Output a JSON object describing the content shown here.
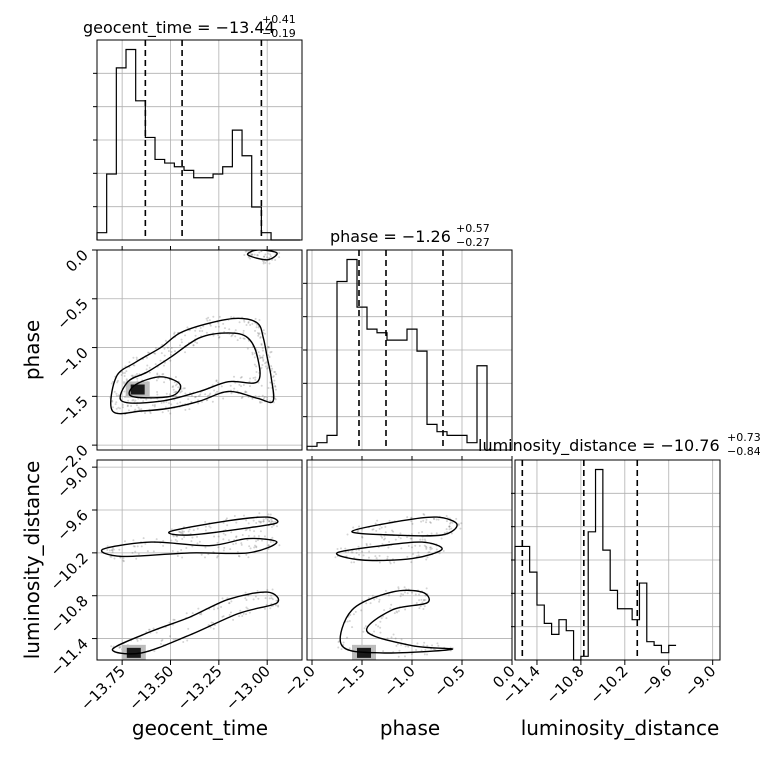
{
  "chart_data": {
    "type": "corner",
    "parameters": [
      "geocent_time",
      "phase",
      "luminosity_distance"
    ],
    "titles": [
      {
        "name": "geocent_time",
        "value": "−13.44",
        "plus": "+0.41",
        "minus": "−0.19"
      },
      {
        "name": "phase",
        "value": "−1.26",
        "plus": "+0.57",
        "minus": "−0.27"
      },
      {
        "name": "luminosity_distance",
        "value": "−10.76",
        "plus": "+0.73",
        "minus": "−0.84"
      }
    ],
    "axis_labels": {
      "x": [
        "geocent_time",
        "phase",
        "luminosity_distance"
      ],
      "y": [
        "phase",
        "luminosity_distance"
      ]
    },
    "ranges": {
      "geocent_time": [
        -13.88,
        -12.82
      ],
      "phase": [
        -2.05,
        0.0
      ],
      "luminosity_distance": [
        -11.7,
        -8.9
      ]
    },
    "ticks": {
      "geocent_time": [
        "−13.75",
        "−13.50",
        "−13.25",
        "−13.00"
      ],
      "geocent_time_values": [
        -13.75,
        -13.5,
        -13.25,
        -13.0
      ],
      "phase": [
        "−2.0",
        "−1.5",
        "−1.0",
        "−0.5",
        "0.0"
      ],
      "phase_values": [
        -2.0,
        -1.5,
        -1.0,
        -0.5,
        0.0
      ],
      "luminosity_distance": [
        "−11.4",
        "−10.8",
        "−10.2",
        "−9.6",
        "−9.0"
      ],
      "luminosity_distance_values": [
        -11.4,
        -10.8,
        -10.2,
        -9.6,
        -9.0
      ]
    },
    "quantiles": {
      "geocent_time": [
        -13.63,
        -13.44,
        -13.03
      ],
      "phase": [
        -1.53,
        -1.26,
        -0.69
      ],
      "luminosity_distance": [
        -11.6,
        -10.76,
        -10.03
      ]
    },
    "hist_geocent_time": {
      "bin_edges_start": -13.88,
      "bin_width": 0.05,
      "counts": [
        2,
        18,
        47,
        52,
        38,
        28,
        22,
        21,
        20,
        19,
        17,
        17,
        18,
        20,
        30,
        23,
        9,
        2,
        0,
        0,
        0
      ]
    },
    "hist_phase": {
      "bin_edges_start": -2.05,
      "bin_width": 0.1,
      "counts": [
        1,
        2,
        4,
        46,
        52,
        39,
        33,
        32,
        30,
        30,
        33,
        27,
        7,
        5,
        4,
        4,
        2,
        23,
        0
      ]
    },
    "hist_luminosity_distance": {
      "bin_edges_start": -11.7,
      "bin_width": 0.1,
      "counts": [
        31,
        31,
        24,
        15,
        10,
        7,
        11,
        8,
        0,
        1,
        35,
        52,
        30,
        19,
        14,
        14,
        11,
        21,
        5,
        4,
        2,
        4
      ]
    },
    "contours": {
      "phase_vs_geocent_time": [
        {
          "level": "outer",
          "points": [
            [
              -13.8,
              -1.65
            ],
            [
              -13.78,
              -1.3
            ],
            [
              -13.68,
              -1.15
            ],
            [
              -13.55,
              -1.0
            ],
            [
              -13.45,
              -0.85
            ],
            [
              -13.3,
              -0.75
            ],
            [
              -13.15,
              -0.7
            ],
            [
              -13.05,
              -0.75
            ],
            [
              -13.02,
              -0.9
            ],
            [
              -13.0,
              -1.1
            ],
            [
              -12.98,
              -1.3
            ],
            [
              -12.97,
              -1.55
            ],
            [
              -13.05,
              -1.52
            ],
            [
              -13.2,
              -1.45
            ],
            [
              -13.35,
              -1.55
            ],
            [
              -13.5,
              -1.62
            ],
            [
              -13.65,
              -1.65
            ]
          ]
        },
        {
          "level": "middle",
          "points": [
            [
              -13.75,
              -1.55
            ],
            [
              -13.72,
              -1.35
            ],
            [
              -13.62,
              -1.25
            ],
            [
              -13.5,
              -1.1
            ],
            [
              -13.35,
              -0.9
            ],
            [
              -13.2,
              -0.85
            ],
            [
              -13.1,
              -0.9
            ],
            [
              -13.05,
              -1.1
            ],
            [
              -13.05,
              -1.35
            ],
            [
              -13.2,
              -1.35
            ],
            [
              -13.35,
              -1.45
            ],
            [
              -13.55,
              -1.55
            ]
          ]
        },
        {
          "level": "inner",
          "points": [
            [
              -13.7,
              -1.5
            ],
            [
              -13.68,
              -1.38
            ],
            [
              -13.55,
              -1.3
            ],
            [
              -13.45,
              -1.38
            ],
            [
              -13.5,
              -1.5
            ]
          ]
        },
        {
          "level": "top",
          "points": [
            [
              -13.1,
              -0.05
            ],
            [
              -13.05,
              0.0
            ],
            [
              -12.95,
              -0.03
            ],
            [
              -13.0,
              -0.1
            ]
          ]
        }
      ],
      "luminosity_distance_vs_geocent_time": [
        {
          "level": "band-high",
          "points": [
            [
              -13.5,
              -9.9
            ],
            [
              -13.2,
              -9.75
            ],
            [
              -13.0,
              -9.7
            ],
            [
              -12.95,
              -9.78
            ],
            [
              -13.1,
              -9.85
            ],
            [
              -13.4,
              -9.95
            ]
          ]
        },
        {
          "level": "band-mid",
          "points": [
            [
              -13.85,
              -10.15
            ],
            [
              -13.6,
              -10.05
            ],
            [
              -13.3,
              -10.1
            ],
            [
              -13.1,
              -10.0
            ],
            [
              -12.95,
              -10.05
            ],
            [
              -13.1,
              -10.2
            ],
            [
              -13.4,
              -10.2
            ],
            [
              -13.75,
              -10.25
            ]
          ]
        },
        {
          "level": "band-low",
          "points": [
            [
              -13.8,
              -11.55
            ],
            [
              -13.6,
              -11.3
            ],
            [
              -13.4,
              -11.1
            ],
            [
              -13.2,
              -10.85
            ],
            [
              -13.0,
              -10.75
            ],
            [
              -12.95,
              -10.9
            ],
            [
              -13.15,
              -11.05
            ],
            [
              -13.4,
              -11.35
            ],
            [
              -13.65,
              -11.6
            ]
          ]
        }
      ],
      "luminosity_distance_vs_phase": [
        {
          "level": "band-high",
          "points": [
            [
              -1.6,
              -9.9
            ],
            [
              -1.1,
              -9.75
            ],
            [
              -0.75,
              -9.7
            ],
            [
              -0.55,
              -9.8
            ],
            [
              -0.7,
              -9.95
            ],
            [
              -1.2,
              -9.95
            ]
          ]
        },
        {
          "level": "band-mid",
          "points": [
            [
              -1.75,
              -10.2
            ],
            [
              -1.3,
              -10.1
            ],
            [
              -0.9,
              -10.05
            ],
            [
              -0.7,
              -10.15
            ],
            [
              -1.0,
              -10.28
            ],
            [
              -1.5,
              -10.3
            ]
          ]
        },
        {
          "level": "band-low",
          "points": [
            [
              -1.7,
              -11.5
            ],
            [
              -1.6,
              -11.0
            ],
            [
              -1.2,
              -10.75
            ],
            [
              -0.9,
              -10.75
            ],
            [
              -0.85,
              -10.9
            ],
            [
              -1.2,
              -11.0
            ],
            [
              -1.45,
              -11.3
            ],
            [
              -1.0,
              -11.5
            ],
            [
              -0.6,
              -11.55
            ],
            [
              -1.3,
              -11.6
            ]
          ]
        }
      ]
    },
    "density_peaks": {
      "phase_vs_geocent_time": [
        [
          -13.68,
          -1.43
        ]
      ],
      "luminosity_distance_vs_geocent_time": [
        [
          -13.7,
          -11.6
        ]
      ],
      "luminosity_distance_vs_phase": [
        [
          -1.5,
          -11.6
        ]
      ]
    },
    "grid": true,
    "colors": {
      "line": "#000000",
      "dashed": "#000000",
      "grid": "#b0b0b0",
      "points": "#555555",
      "density": "#1a1a1a"
    }
  }
}
